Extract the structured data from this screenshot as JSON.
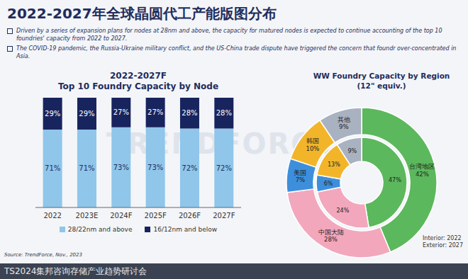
{
  "title": "2022-2027年全球晶圆代工产能版图分布",
  "bullets": [
    "Driven by a series of expansion plans for nodes at 28nm and above, the capacity for matured nodes is expected to continue accounting of the top 10 foundries' capacity from 2022 to 2027.",
    "The COVID-19 pandemic, the Russia-Ukraine military conflict, and the US-China trade dispute have triggered the concern that foundr over-concentrated in Asia."
  ],
  "watermark": "TRENDFORCE",
  "source": "Source: TrendForce, Nov., 2023",
  "footer": "TS2024集邦咨询存储产业趋势研讨会",
  "chart_data": [
    {
      "type": "bar",
      "title": "2022-2027F",
      "subtitle": "Top 10 Foundry Capacity by Node",
      "categories": [
        "2022",
        "2023E",
        "2024F",
        "2025F",
        "2026F",
        "2027F"
      ],
      "series": [
        {
          "name": "28/22nm and above",
          "color": "#8fc6ea",
          "values": [
            71,
            71,
            73,
            73,
            72,
            72
          ],
          "value_labels": [
            "71%",
            "71%",
            "73%",
            "73%",
            "72%",
            "72%"
          ]
        },
        {
          "name": "16/12nm and below",
          "color": "#18245e",
          "values": [
            29,
            29,
            27,
            27,
            28,
            28
          ],
          "value_labels": [
            "29%",
            "29%",
            "27%",
            "27%",
            "28%",
            "28%"
          ]
        }
      ],
      "stacked": true,
      "data_labels": true,
      "ylim": [
        0,
        100
      ],
      "tick_labels": "x",
      "legend": "bottom"
    },
    {
      "type": "donut",
      "title": "WW Foundry Capacity by Region",
      "subtitle": "(12\" equiv.)",
      "categories": [
        "台湾地区",
        "中国大陆",
        "美国",
        "韩国",
        "其他"
      ],
      "colors": [
        "#5cb85c",
        "#f2a7bd",
        "#3d8fdc",
        "#f2b52a",
        "#a9b2c0"
      ],
      "series": [
        {
          "name": "Exterior: 2027",
          "values": [
            42,
            28,
            7,
            10,
            9
          ],
          "value_labels": [
            "42%",
            "28%",
            "7%",
            "10%",
            "9%"
          ]
        },
        {
          "name": "Interior: 2022",
          "values": [
            47,
            24,
            6,
            13,
            9
          ],
          "value_labels": [
            "47%",
            "24%",
            "6%",
            "13%",
            "9%"
          ]
        }
      ],
      "data_labels": true
    }
  ]
}
